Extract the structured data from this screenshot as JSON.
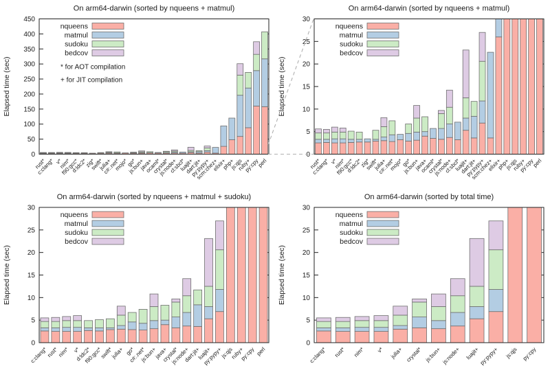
{
  "page": {
    "background": "#ffffff"
  },
  "legend": {
    "labels": [
      "nqueens",
      "matmul",
      "sudoku",
      "bedcov"
    ]
  },
  "annotations": {
    "aot": "* for AOT compilation",
    "jit": "+ for JIT compilation"
  },
  "colors": {
    "nqueens": "#FAAFA6",
    "matmul": "#B3CDE3",
    "sudoku": "#CCEBC5",
    "bedcov": "#DECBE4",
    "bar_border": "#6e6e6e",
    "axis": "#222222",
    "connector": "#b0b0b0"
  },
  "chart_data": [
    {
      "type": "bar",
      "stacked": true,
      "title": "On arm64-darwin (sorted by nqueens + matmul)",
      "xlabel": "",
      "ylabel": "Elapsed time (sec)",
      "ylim": [
        0,
        450
      ],
      "ytick": 50,
      "grid": false,
      "legend_position": "top-left",
      "show_annotations": true,
      "categories": [
        "rust*",
        "c:clang*",
        "v*",
        "nim*",
        "f90:gcc*",
        "d:ldc2*",
        "zig*",
        "swift*",
        "julia+",
        "c#:.net*",
        "mojo*",
        "go*",
        "js:bun+",
        "java+",
        "ocaml*",
        "crystal*",
        "js:node+",
        "cl:sbcl*",
        "luajit+",
        "dart:jit+",
        "py:pypy+",
        "scm:chez+",
        "elixir+",
        "php+",
        "js:qjs",
        "ruby+",
        "py:cpy",
        "perl"
      ],
      "series": [
        {
          "name": "nqueens",
          "values": [
            2.5,
            2.6,
            2.5,
            2.5,
            2.6,
            2.7,
            2.7,
            2.9,
            3.0,
            2.8,
            3.2,
            2.9,
            3.1,
            4.0,
            3.5,
            3.3,
            3.7,
            3.2,
            5.3,
            3.6,
            6.9,
            3.6,
            26,
            48,
            59,
            88,
            160,
            158
          ]
        },
        {
          "name": "matmul",
          "values": [
            0.8,
            0.7,
            0.9,
            0.9,
            0.7,
            0.6,
            0.7,
            0.4,
            0.8,
            1.5,
            1.2,
            1.7,
            1.8,
            1.0,
            2.2,
            2.4,
            3.0,
            3.9,
            2.7,
            4.8,
            4.9,
            19,
            68,
            72,
            137,
            132,
            118,
            159
          ]
        },
        {
          "name": "sudoku",
          "values": [
            1.4,
            1.4,
            1.5,
            1.5,
            1.8,
            1.6,
            0,
            2.0,
            2.3,
            3.1,
            0,
            2.1,
            3.1,
            3.3,
            0,
            3.3,
            3.7,
            0,
            4.5,
            3.3,
            8.8,
            0,
            0,
            0,
            67,
            52,
            54,
            90
          ]
        },
        {
          "name": "bedcov",
          "values": [
            0.9,
            0.8,
            1.1,
            0.9,
            0,
            0,
            0,
            0,
            2.0,
            0,
            0,
            0,
            2.8,
            0,
            0,
            0.7,
            3.8,
            0,
            10.6,
            0,
            6.4,
            0,
            0,
            0,
            38,
            0,
            42,
            0
          ]
        }
      ]
    },
    {
      "type": "bar",
      "stacked": true,
      "title": "On arm64-darwin (sorted by nqueens + matmul)",
      "xlabel": "",
      "ylabel": "Elapsed time (sec)",
      "ylim": [
        0,
        30
      ],
      "ytick": 5,
      "grid": false,
      "legend_position": "top-left",
      "show_annotations": false,
      "categories": [
        "rust*",
        "c:clang*",
        "v*",
        "nim*",
        "f90:gcc*",
        "d:ldc2*",
        "zig*",
        "swift*",
        "julia+",
        "c#:.net*",
        "mojo*",
        "go*",
        "js:bun+",
        "java+",
        "ocaml*",
        "crystal*",
        "js:node+",
        "cl:sbcl*",
        "luajit+",
        "dart:jit+",
        "py:pypy+",
        "scm:chez+",
        "elixir+",
        "php+",
        "js:qjs",
        "ruby+",
        "py:cpy",
        "perl"
      ],
      "series": [
        {
          "name": "nqueens",
          "values": [
            2.5,
            2.6,
            2.5,
            2.5,
            2.6,
            2.7,
            2.7,
            2.9,
            3.0,
            2.8,
            3.2,
            2.9,
            3.1,
            4.0,
            3.5,
            3.3,
            3.7,
            3.2,
            5.3,
            3.6,
            6.9,
            3.6,
            26,
            48,
            59,
            88,
            160,
            158
          ]
        },
        {
          "name": "matmul",
          "values": [
            0.8,
            0.7,
            0.9,
            0.9,
            0.7,
            0.6,
            0.7,
            0.4,
            0.8,
            1.5,
            1.2,
            1.7,
            1.8,
            1.0,
            2.2,
            2.4,
            3.0,
            3.9,
            2.7,
            4.8,
            4.9,
            19,
            68,
            72,
            137,
            132,
            118,
            159
          ]
        },
        {
          "name": "sudoku",
          "values": [
            1.4,
            1.4,
            1.5,
            1.5,
            1.8,
            1.6,
            0,
            2.0,
            2.3,
            3.1,
            0,
            2.1,
            3.1,
            3.3,
            0,
            3.3,
            3.7,
            0,
            4.5,
            3.3,
            8.8,
            0,
            0,
            0,
            67,
            52,
            54,
            90
          ]
        },
        {
          "name": "bedcov",
          "values": [
            0.9,
            0.8,
            1.1,
            0.9,
            0,
            0,
            0,
            0,
            2.0,
            0,
            0,
            0,
            2.8,
            0,
            0,
            0.7,
            3.8,
            0,
            10.6,
            0,
            6.4,
            0,
            0,
            0,
            38,
            0,
            42,
            0
          ]
        }
      ]
    },
    {
      "type": "bar",
      "stacked": true,
      "title": "On arm64-darwin (sorted by nqueens + matmul + sudoku)",
      "xlabel": "",
      "ylabel": "Elapsed time (sec)",
      "ylim": [
        0,
        30
      ],
      "ytick": 5,
      "grid": false,
      "legend_position": "top-left",
      "show_annotations": false,
      "categories": [
        "c:clang*",
        "rust*",
        "nim*",
        "v*",
        "d:ldc2*",
        "f90:gcc*",
        "swift*",
        "julia+",
        "go*",
        "c#:.net*",
        "js:bun+",
        "java+",
        "crystal*",
        "js:node+",
        "dart:jit+",
        "luajit+",
        "py:pypy+",
        "js:qjs",
        "ruby+",
        "py:cpy",
        "perl"
      ],
      "series": [
        {
          "name": "nqueens",
          "values": [
            2.6,
            2.5,
            2.5,
            2.5,
            2.7,
            2.6,
            2.9,
            3.0,
            2.9,
            2.8,
            3.1,
            4.0,
            3.3,
            3.7,
            3.6,
            5.3,
            6.9,
            59,
            88,
            160,
            158
          ]
        },
        {
          "name": "matmul",
          "values": [
            0.7,
            0.8,
            0.9,
            0.9,
            0.6,
            0.7,
            0.4,
            0.8,
            1.7,
            1.5,
            1.8,
            1.0,
            2.4,
            3.0,
            4.8,
            2.7,
            4.9,
            137,
            132,
            118,
            159
          ]
        },
        {
          "name": "sudoku",
          "values": [
            1.4,
            1.4,
            1.5,
            1.5,
            1.6,
            1.8,
            2.0,
            2.3,
            2.1,
            3.1,
            3.1,
            3.3,
            3.3,
            3.7,
            3.3,
            4.5,
            8.8,
            67,
            52,
            54,
            90
          ]
        },
        {
          "name": "bedcov",
          "values": [
            0.8,
            0.9,
            0.9,
            1.1,
            0,
            0,
            0,
            2.0,
            0,
            0,
            2.8,
            0,
            0.7,
            3.8,
            0,
            10.6,
            6.4,
            38,
            0,
            42,
            0
          ]
        }
      ]
    },
    {
      "type": "bar",
      "stacked": true,
      "title": "On arm64-darwin (sorted by total time)",
      "xlabel": "",
      "ylabel": "Elapsed time (sec)",
      "ylim": [
        0,
        30
      ],
      "ytick": 5,
      "grid": false,
      "legend_position": "top-left",
      "show_annotations": false,
      "categories": [
        "c:clang*",
        "rust*",
        "nim*",
        "v*",
        "julia+",
        "crystal*",
        "js:bun+",
        "js:node+",
        "luajit+",
        "py:pypy+",
        "js:qjs",
        "py:cpy"
      ],
      "series": [
        {
          "name": "nqueens",
          "values": [
            2.6,
            2.5,
            2.5,
            2.5,
            3.0,
            3.3,
            3.1,
            3.7,
            5.3,
            6.9,
            59,
            160
          ]
        },
        {
          "name": "matmul",
          "values": [
            0.7,
            0.8,
            0.9,
            0.9,
            0.8,
            2.4,
            1.8,
            3.0,
            2.7,
            4.9,
            137,
            118
          ]
        },
        {
          "name": "sudoku",
          "values": [
            1.4,
            1.4,
            1.5,
            1.5,
            2.3,
            3.3,
            3.1,
            3.7,
            4.5,
            8.8,
            67,
            54
          ]
        },
        {
          "name": "bedcov",
          "values": [
            0.8,
            0.9,
            0.9,
            1.1,
            2.0,
            0.7,
            2.8,
            3.8,
            10.6,
            6.4,
            38,
            42
          ]
        }
      ]
    }
  ]
}
